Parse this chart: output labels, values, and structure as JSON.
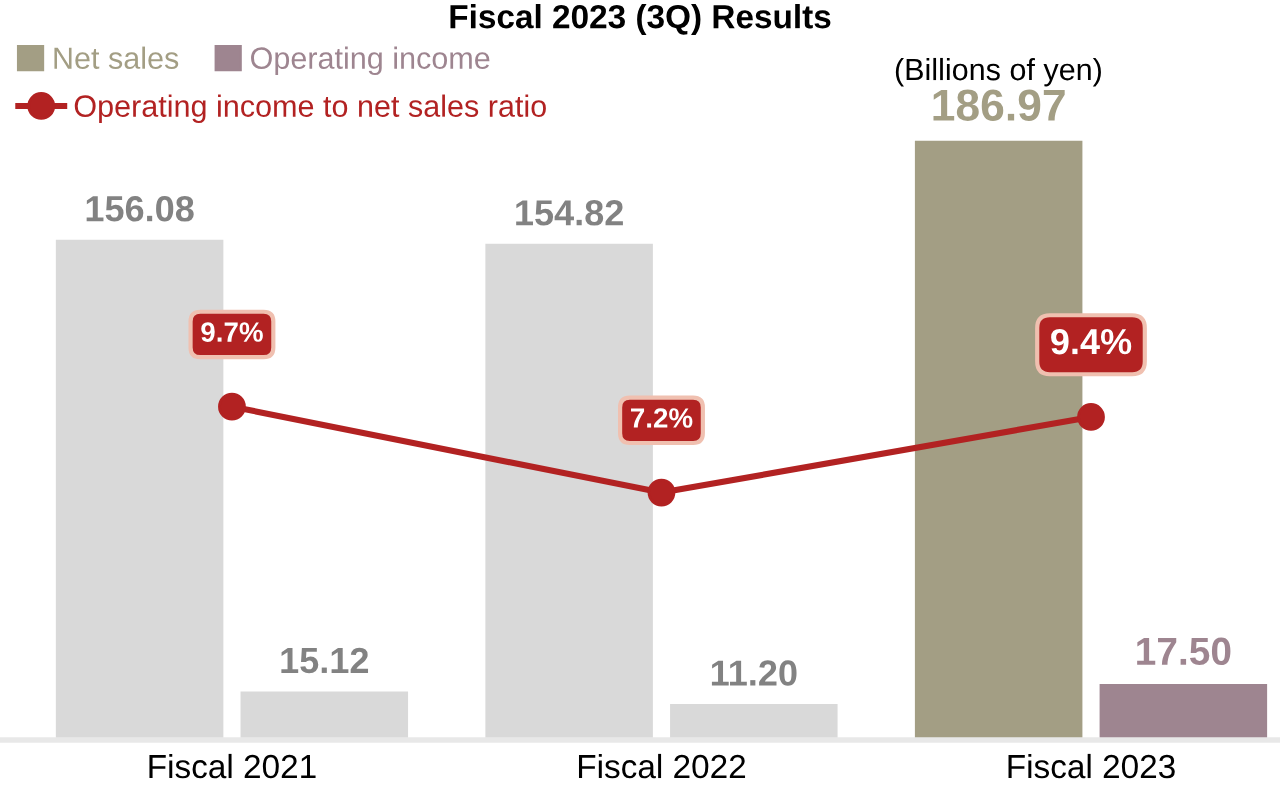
{
  "chart_data": {
    "type": "bar",
    "title": "Fiscal 2023 (3Q) Results",
    "categories": [
      "Fiscal 2021",
      "Fiscal 2022",
      "Fiscal 2023"
    ],
    "series": [
      {
        "name": "Net sales",
        "color": "#a39e84",
        "colors": [
          "#d9d9d9",
          "#d9d9d9",
          "#a39e84"
        ],
        "values": [
          156.08,
          154.82,
          186.97
        ],
        "value_labels": [
          "156.08",
          "154.82",
          "186.97"
        ]
      },
      {
        "name": "Operating income",
        "color": "#9e8590",
        "colors": [
          "#d9d9d9",
          "#d9d9d9",
          "#9e8590"
        ],
        "values": [
          15.12,
          11.2,
          17.5
        ],
        "value_labels": [
          "15.12",
          "11.20",
          "17.50"
        ]
      },
      {
        "name": "Operating income to net sales ratio",
        "type": "line",
        "axis": "y2",
        "color": "#b22222",
        "marker": "circle",
        "values": [
          9.7,
          7.2,
          9.4
        ],
        "value_labels": [
          "9.7%",
          "7.2%",
          "9.4%"
        ]
      }
    ],
    "legend": "top left",
    "grid": false,
    "data_labels": true,
    "annotations": [
      "(Billions of yen)"
    ]
  }
}
